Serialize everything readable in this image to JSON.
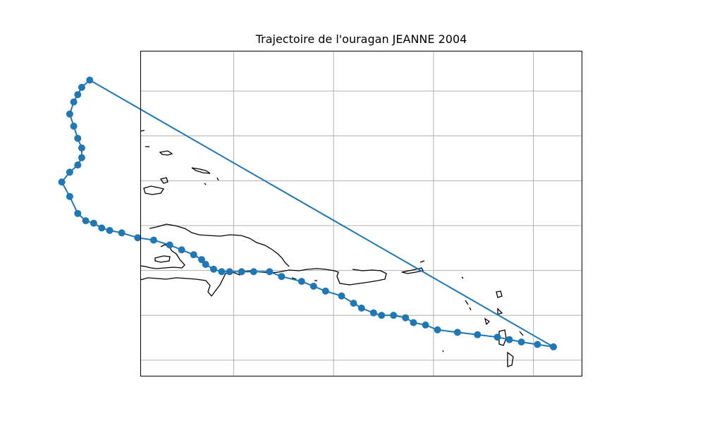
{
  "title": "Trajectoire de l'ouragan JEANNE 2004",
  "colors": {
    "track": "#1f77b4",
    "coastline": "#000000",
    "grid": "#b0b0b0",
    "frame": "#000000",
    "background": "#ffffff"
  },
  "chart_data": {
    "type": "map-track",
    "title": "Trajectoire de l'ouragan JEANNE 2004",
    "grid": true,
    "legend": "none",
    "track": [
      [
        -59.5,
        16.4
      ],
      [
        -59.9,
        16.5
      ],
      [
        -60.3,
        16.6
      ],
      [
        -60.6,
        16.7
      ],
      [
        -60.9,
        16.8
      ],
      [
        -61.4,
        16.9
      ],
      [
        -61.9,
        17.0
      ],
      [
        -62.4,
        17.1
      ],
      [
        -62.7,
        17.3
      ],
      [
        -63.0,
        17.4
      ],
      [
        -63.2,
        17.6
      ],
      [
        -63.5,
        17.7
      ],
      [
        -63.8,
        17.7
      ],
      [
        -64.0,
        17.8
      ],
      [
        -64.3,
        18.0
      ],
      [
        -64.5,
        18.2
      ],
      [
        -64.8,
        18.5
      ],
      [
        -65.2,
        18.7
      ],
      [
        -65.5,
        18.9
      ],
      [
        -65.8,
        19.1
      ],
      [
        -66.3,
        19.3
      ],
      [
        -66.6,
        19.5
      ],
      [
        -67.0,
        19.5
      ],
      [
        -67.3,
        19.5
      ],
      [
        -67.6,
        19.5
      ],
      [
        -67.8,
        19.5
      ],
      [
        -68.0,
        19.6
      ],
      [
        -68.2,
        19.8
      ],
      [
        -68.3,
        20.0
      ],
      [
        -68.5,
        20.2
      ],
      [
        -68.8,
        20.4
      ],
      [
        -69.1,
        20.6
      ],
      [
        -69.5,
        20.8
      ],
      [
        -69.9,
        20.9
      ],
      [
        -70.3,
        21.1
      ],
      [
        -70.6,
        21.2
      ],
      [
        -70.8,
        21.3
      ],
      [
        -71.0,
        21.5
      ],
      [
        -71.2,
        21.6
      ],
      [
        -71.4,
        21.9
      ],
      [
        -71.6,
        22.6
      ],
      [
        -71.8,
        23.2
      ],
      [
        -71.6,
        23.6
      ],
      [
        -71.4,
        23.9
      ],
      [
        -71.3,
        24.2
      ],
      [
        -71.3,
        24.6
      ],
      [
        -71.4,
        25.0
      ],
      [
        -71.5,
        25.5
      ],
      [
        -71.6,
        26.0
      ],
      [
        -71.5,
        26.5
      ],
      [
        -71.4,
        26.8
      ],
      [
        -71.3,
        27.1
      ],
      [
        -71.1,
        27.4
      ],
      [
        -59.5,
        16.4
      ]
    ],
    "markers_count": 53
  }
}
